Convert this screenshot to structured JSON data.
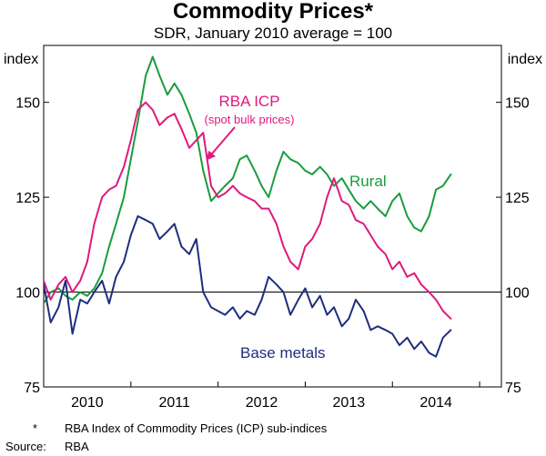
{
  "chart_data": {
    "type": "line",
    "title": "Commodity Prices*",
    "subtitle": "SDR, January 2010 average = 100",
    "ylabel_left": "index",
    "ylabel_right": "index",
    "ylim": [
      75,
      165
    ],
    "xlim": [
      2009.5,
      2014.75
    ],
    "y_ticks": [
      75,
      100,
      125,
      150
    ],
    "y_tick_labels": [
      "75",
      "100",
      "125",
      "150"
    ],
    "x_tick_labels": [
      {
        "label": "2010",
        "x": 2010.0
      },
      {
        "label": "2011",
        "x": 2011.0
      },
      {
        "label": "2012",
        "x": 2012.0
      },
      {
        "label": "2013",
        "x": 2013.0
      },
      {
        "label": "2014",
        "x": 2014.0
      }
    ],
    "year_boundaries": [
      2010.5,
      2011.5,
      2012.5,
      2013.5,
      2014.5
    ],
    "reference_line": 100,
    "grid": false,
    "series": [
      {
        "name": "Rural",
        "color": "#1a9c3e",
        "x": [
          2009.5,
          2009.58,
          2009.67,
          2009.75,
          2009.83,
          2009.92,
          2010.0,
          2010.08,
          2010.17,
          2010.25,
          2010.33,
          2010.42,
          2010.5,
          2010.58,
          2010.67,
          2010.75,
          2010.83,
          2010.92,
          2011.0,
          2011.08,
          2011.17,
          2011.25,
          2011.33,
          2011.42,
          2011.5,
          2011.58,
          2011.67,
          2011.75,
          2011.83,
          2011.92,
          2012.0,
          2012.08,
          2012.17,
          2012.25,
          2012.33,
          2012.42,
          2012.5,
          2012.58,
          2012.67,
          2012.75,
          2012.83,
          2012.92,
          2013.0,
          2013.08,
          2013.17,
          2013.25,
          2013.33,
          2013.42,
          2013.5,
          2013.58,
          2013.67,
          2013.75,
          2013.83,
          2013.92,
          2014.0,
          2014.08,
          2014.17
        ],
        "values": [
          97,
          100,
          101,
          99,
          98,
          100,
          99,
          101,
          105,
          112,
          118,
          125,
          135,
          145,
          157,
          162,
          157,
          152,
          155,
          152,
          147,
          142,
          132,
          124,
          126,
          128,
          130,
          135,
          136,
          132,
          128,
          125,
          132,
          137,
          135,
          134,
          132,
          131,
          133,
          131,
          128,
          130,
          127,
          124,
          122,
          124,
          122,
          120,
          124,
          126,
          120,
          117,
          116,
          120,
          127,
          128,
          131
        ]
      },
      {
        "name": "RBA ICP",
        "color": "#e0197d",
        "x": [
          2009.5,
          2009.58,
          2009.67,
          2009.75,
          2009.83,
          2009.92,
          2010.0,
          2010.08,
          2010.17,
          2010.25,
          2010.33,
          2010.42,
          2010.5,
          2010.58,
          2010.67,
          2010.75,
          2010.83,
          2010.92,
          2011.0,
          2011.08,
          2011.17,
          2011.25,
          2011.33,
          2011.42,
          2011.5,
          2011.58,
          2011.67,
          2011.75,
          2011.83,
          2011.92,
          2012.0,
          2012.08,
          2012.17,
          2012.25,
          2012.33,
          2012.42,
          2012.5,
          2012.58,
          2012.67,
          2012.75,
          2012.83,
          2012.92,
          2013.0,
          2013.08,
          2013.17,
          2013.25,
          2013.33,
          2013.42,
          2013.5,
          2013.58,
          2013.67,
          2013.75,
          2013.83,
          2013.92,
          2014.0,
          2014.08,
          2014.17
        ],
        "values": [
          103,
          98,
          102,
          104,
          100,
          103,
          108,
          118,
          125,
          127,
          128,
          133,
          140,
          148,
          150,
          148,
          144,
          146,
          147,
          143,
          138,
          140,
          142,
          128,
          125,
          126,
          128,
          126,
          125,
          124,
          122,
          122,
          118,
          112,
          108,
          106,
          112,
          114,
          118,
          125,
          130,
          124,
          123,
          119,
          118,
          115,
          112,
          110,
          106,
          108,
          104,
          105,
          102,
          100,
          98,
          95,
          93
        ]
      },
      {
        "name": "Base metals",
        "color": "#1e2e7d",
        "x": [
          2009.5,
          2009.58,
          2009.67,
          2009.75,
          2009.83,
          2009.92,
          2010.0,
          2010.08,
          2010.17,
          2010.25,
          2010.33,
          2010.42,
          2010.5,
          2010.58,
          2010.67,
          2010.75,
          2010.83,
          2010.92,
          2011.0,
          2011.08,
          2011.17,
          2011.25,
          2011.33,
          2011.42,
          2011.5,
          2011.58,
          2011.67,
          2011.75,
          2011.83,
          2011.92,
          2012.0,
          2012.08,
          2012.17,
          2012.25,
          2012.33,
          2012.42,
          2012.5,
          2012.58,
          2012.67,
          2012.75,
          2012.83,
          2012.92,
          2013.0,
          2013.08,
          2013.17,
          2013.25,
          2013.33,
          2013.42,
          2013.5,
          2013.58,
          2013.67,
          2013.75,
          2013.83,
          2013.92,
          2014.0,
          2014.08,
          2014.17
        ],
        "values": [
          102,
          92,
          96,
          103,
          89,
          98,
          97,
          100,
          103,
          97,
          104,
          108,
          115,
          120,
          119,
          118,
          114,
          116,
          118,
          112,
          110,
          114,
          100,
          96,
          95,
          94,
          96,
          93,
          95,
          94,
          98,
          104,
          102,
          100,
          94,
          98,
          101,
          96,
          99,
          94,
          96,
          91,
          93,
          98,
          95,
          90,
          91,
          90,
          89,
          86,
          88,
          85,
          87,
          84,
          83,
          88,
          90
        ]
      }
    ],
    "annotations": {
      "rba_icp_label": "RBA ICP",
      "rba_icp_sublabel": "(spot bulk prices)",
      "rural_label": "Rural",
      "base_metals_label": "Base metals"
    }
  },
  "footnote": {
    "star": "*",
    "star_text": "RBA Index of Commodity Prices (ICP) sub-indices",
    "source_label": "Source:",
    "source_text": "RBA"
  }
}
